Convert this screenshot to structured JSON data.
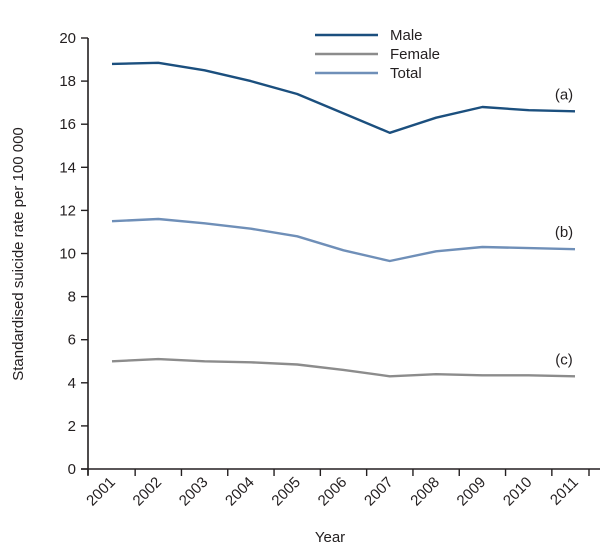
{
  "chart_data": {
    "type": "line",
    "title": "",
    "xlabel": "Year",
    "ylabel": "Standardised suicide rate per 100 000",
    "ylim": [
      0,
      20
    ],
    "yticks": [
      "0",
      "2",
      "4",
      "6",
      "8",
      "10",
      "12",
      "14",
      "16",
      "18",
      "20"
    ],
    "x": [
      "2001",
      "2002",
      "2003",
      "2004",
      "2005",
      "2006",
      "2007",
      "2008",
      "2009",
      "2010",
      "2011"
    ],
    "grid": false,
    "legend_position": "top-center",
    "series": [
      {
        "name": "Male",
        "color": "#1b4f7e",
        "annotation": "(a)",
        "values": [
          18.8,
          18.85,
          18.5,
          18.0,
          17.4,
          16.5,
          15.6,
          16.3,
          16.8,
          16.65,
          16.6
        ]
      },
      {
        "name": "Female",
        "color": "#8c8c8c",
        "annotation": "(c)",
        "values": [
          5.0,
          5.1,
          5.0,
          4.95,
          4.85,
          4.6,
          4.3,
          4.4,
          4.35,
          4.35,
          4.3
        ]
      },
      {
        "name": "Total",
        "color": "#6f8fb8",
        "annotation": "(b)",
        "values": [
          11.5,
          11.6,
          11.4,
          11.15,
          10.8,
          10.15,
          9.65,
          10.1,
          10.3,
          10.25,
          10.2
        ]
      }
    ]
  }
}
